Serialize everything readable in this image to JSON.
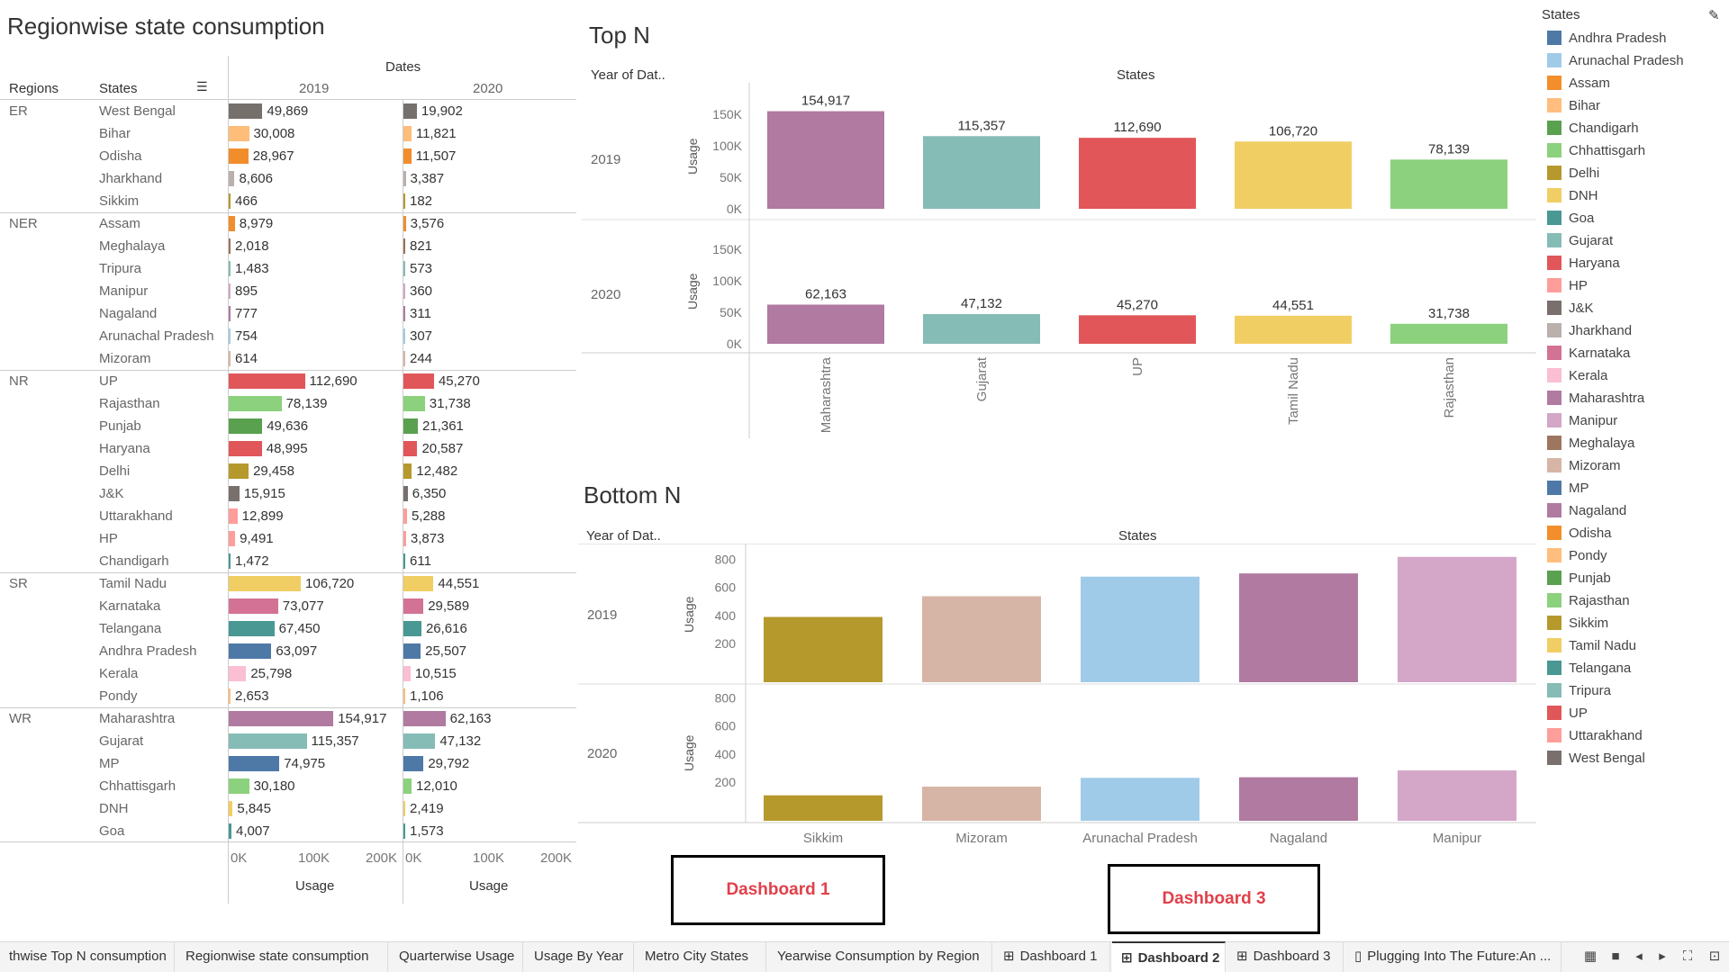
{
  "left_panel": {
    "title": "Regionwise state consumption",
    "col_regions": "Regions",
    "col_states": "States",
    "col_dates": "Dates",
    "year_2019": "2019",
    "year_2020": "2020",
    "axis_ticks": [
      "0K",
      "100K",
      "200K"
    ],
    "axis_label": "Usage",
    "rows": [
      {
        "region": "ER",
        "state": "West Bengal",
        "v2019": "49,869",
        "v2020": "19,902",
        "n2019": 49869,
        "n2020": 19902,
        "color": "#76706c"
      },
      {
        "region": "",
        "state": "Bihar",
        "v2019": "30,008",
        "v2020": "11,821",
        "n2019": 30008,
        "n2020": 11821,
        "color": "#ffbd7a"
      },
      {
        "region": "",
        "state": "Odisha",
        "v2019": "28,967",
        "v2020": "11,507",
        "n2019": 28967,
        "n2020": 11507,
        "color": "#f28d2c"
      },
      {
        "region": "",
        "state": "Jharkhand",
        "v2019": "8,606",
        "v2020": "3,387",
        "n2019": 8606,
        "n2020": 3387,
        "color": "#bab0ac"
      },
      {
        "region": "",
        "state": "Sikkim",
        "v2019": "466",
        "v2020": "182",
        "n2019": 466,
        "n2020": 182,
        "color": "#b5992e"
      },
      {
        "region": "NER",
        "state": "Assam",
        "v2019": "8,979",
        "v2020": "3,576",
        "n2019": 8979,
        "n2020": 3576,
        "color": "#f28d2c"
      },
      {
        "region": "",
        "state": "Meghalaya",
        "v2019": "2,018",
        "v2020": "821",
        "n2019": 2018,
        "n2020": 821,
        "color": "#9c7356"
      },
      {
        "region": "",
        "state": "Tripura",
        "v2019": "1,483",
        "v2020": "573",
        "n2019": 1483,
        "n2020": 573,
        "color": "#86bcb6"
      },
      {
        "region": "",
        "state": "Manipur",
        "v2019": "895",
        "v2020": "360",
        "n2019": 895,
        "n2020": 360,
        "color": "#d4a6c8"
      },
      {
        "region": "",
        "state": "Nagaland",
        "v2019": "777",
        "v2020": "311",
        "n2019": 777,
        "n2020": 311,
        "color": "#b07aa1"
      },
      {
        "region": "",
        "state": "Arunachal Pradesh",
        "v2019": "754",
        "v2020": "307",
        "n2019": 754,
        "n2020": 307,
        "color": "#a0cbe8"
      },
      {
        "region": "",
        "state": "Mizoram",
        "v2019": "614",
        "v2020": "244",
        "n2019": 614,
        "n2020": 244,
        "color": "#d7b5a6"
      },
      {
        "region": "NR",
        "state": "UP",
        "v2019": "112,690",
        "v2020": "45,270",
        "n2019": 112690,
        "n2020": 45270,
        "color": "#e15759"
      },
      {
        "region": "",
        "state": "Rajasthan",
        "v2019": "78,139",
        "v2020": "31,738",
        "n2019": 78139,
        "n2020": 31738,
        "color": "#8cd17d"
      },
      {
        "region": "",
        "state": "Punjab",
        "v2019": "49,636",
        "v2020": "21,361",
        "n2019": 49636,
        "n2020": 21361,
        "color": "#59a14f"
      },
      {
        "region": "",
        "state": "Haryana",
        "v2019": "48,995",
        "v2020": "20,587",
        "n2019": 48995,
        "n2020": 20587,
        "color": "#e15759"
      },
      {
        "region": "",
        "state": "Delhi",
        "v2019": "29,458",
        "v2020": "12,482",
        "n2019": 29458,
        "n2020": 12482,
        "color": "#b6992d"
      },
      {
        "region": "",
        "state": "J&K",
        "v2019": "15,915",
        "v2020": "6,350",
        "n2019": 15915,
        "n2020": 6350,
        "color": "#79706e"
      },
      {
        "region": "",
        "state": "Uttarakhand",
        "v2019": "12,899",
        "v2020": "5,288",
        "n2019": 12899,
        "n2020": 5288,
        "color": "#ff9d9a"
      },
      {
        "region": "",
        "state": "HP",
        "v2019": "9,491",
        "v2020": "3,873",
        "n2019": 9491,
        "n2020": 3873,
        "color": "#ff9d9a"
      },
      {
        "region": "",
        "state": "Chandigarh",
        "v2019": "1,472",
        "v2020": "611",
        "n2019": 1472,
        "n2020": 611,
        "color": "#499894"
      },
      {
        "region": "SR",
        "state": "Tamil Nadu",
        "v2019": "106,720",
        "v2020": "44,551",
        "n2019": 106720,
        "n2020": 44551,
        "color": "#f1ce63"
      },
      {
        "region": "",
        "state": "Karnataka",
        "v2019": "73,077",
        "v2020": "29,589",
        "n2019": 73077,
        "n2020": 29589,
        "color": "#d37295"
      },
      {
        "region": "",
        "state": "Telangana",
        "v2019": "67,450",
        "v2020": "26,616",
        "n2019": 67450,
        "n2020": 26616,
        "color": "#499894"
      },
      {
        "region": "",
        "state": "Andhra Pradesh",
        "v2019": "63,097",
        "v2020": "25,507",
        "n2019": 63097,
        "n2020": 25507,
        "color": "#4e79a7"
      },
      {
        "region": "",
        "state": "Kerala",
        "v2019": "25,798",
        "v2020": "10,515",
        "n2019": 25798,
        "n2020": 10515,
        "color": "#fabfd2"
      },
      {
        "region": "",
        "state": "Pondy",
        "v2019": "2,653",
        "v2020": "1,106",
        "n2019": 2653,
        "n2020": 1106,
        "color": "#ffbe7d"
      },
      {
        "region": "WR",
        "state": "Maharashtra",
        "v2019": "154,917",
        "v2020": "62,163",
        "n2019": 154917,
        "n2020": 62163,
        "color": "#b07aa1"
      },
      {
        "region": "",
        "state": "Gujarat",
        "v2019": "115,357",
        "v2020": "47,132",
        "n2019": 115357,
        "n2020": 47132,
        "color": "#86bcb6"
      },
      {
        "region": "",
        "state": "MP",
        "v2019": "74,975",
        "v2020": "29,792",
        "n2019": 74975,
        "n2020": 29792,
        "color": "#4e79a7"
      },
      {
        "region": "",
        "state": "Chhattisgarh",
        "v2019": "30,180",
        "v2020": "12,010",
        "n2019": 30180,
        "n2020": 12010,
        "color": "#8cd17d"
      },
      {
        "region": "",
        "state": "DNH",
        "v2019": "5,845",
        "v2020": "2,419",
        "n2019": 5845,
        "n2020": 2419,
        "color": "#f1ce63"
      },
      {
        "region": "",
        "state": "Goa",
        "v2019": "4,007",
        "v2020": "1,573",
        "n2019": 4007,
        "n2020": 1573,
        "color": "#499894"
      }
    ]
  },
  "top_n": {
    "title": "Top N",
    "year_header": "Year of Dat..",
    "states_header": "States",
    "usage_label": "Usage",
    "yticks": [
      "150K",
      "100K",
      "50K",
      "0K"
    ]
  },
  "bottom_n": {
    "title": "Bottom N",
    "year_header": "Year of Dat..",
    "states_header": "States",
    "usage_label": "Usage",
    "yticks": [
      "800",
      "600",
      "400",
      "200"
    ]
  },
  "chart_data": [
    {
      "type": "bar",
      "title": "Top N",
      "categories": [
        "Maharashtra",
        "Gujarat",
        "UP",
        "Tamil Nadu",
        "Rajasthan"
      ],
      "colors": [
        "#b07aa1",
        "#86bcb6",
        "#e15759",
        "#f1ce63",
        "#8cd17d"
      ],
      "series": [
        {
          "name": "2019",
          "values": [
            154917,
            115357,
            112690,
            106720,
            78139
          ],
          "labels": [
            "154,917",
            "115,357",
            "112,690",
            "106,720",
            "78,139"
          ]
        },
        {
          "name": "2020",
          "values": [
            62163,
            47132,
            45270,
            44551,
            31738
          ],
          "labels": [
            "62,163",
            "47,132",
            "45,270",
            "44,551",
            "31,738"
          ]
        }
      ],
      "xlabel": "States",
      "ylabel": "Usage",
      "ylim": [
        0,
        160000
      ]
    },
    {
      "type": "bar",
      "title": "Bottom N",
      "categories": [
        "Sikkim",
        "Mizoram",
        "Arunachal Pradesh",
        "Nagaland",
        "Manipur"
      ],
      "colors": [
        "#b6992d",
        "#d7b5a6",
        "#a0cbe8",
        "#b07aa1",
        "#d4a6c8"
      ],
      "series": [
        {
          "name": "2019",
          "values": [
            466,
            614,
            754,
            777,
            895
          ]
        },
        {
          "name": "2020",
          "values": [
            182,
            244,
            307,
            311,
            360
          ]
        }
      ],
      "xlabel": "States",
      "ylabel": "Usage",
      "ylim": [
        0,
        900
      ]
    }
  ],
  "legend": {
    "title": "States",
    "items": [
      {
        "name": "Andhra Pradesh",
        "color": "#4e79a7"
      },
      {
        "name": "Arunachal Pradesh",
        "color": "#a0cbe8"
      },
      {
        "name": "Assam",
        "color": "#f28e2b"
      },
      {
        "name": "Bihar",
        "color": "#ffbe7d"
      },
      {
        "name": "Chandigarh",
        "color": "#59a14f"
      },
      {
        "name": "Chhattisgarh",
        "color": "#8cd17d"
      },
      {
        "name": "Delhi",
        "color": "#b6992d"
      },
      {
        "name": "DNH",
        "color": "#f1ce63"
      },
      {
        "name": "Goa",
        "color": "#499894"
      },
      {
        "name": "Gujarat",
        "color": "#86bcb6"
      },
      {
        "name": "Haryana",
        "color": "#e15759"
      },
      {
        "name": "HP",
        "color": "#ff9d9a"
      },
      {
        "name": "J&K",
        "color": "#79706e"
      },
      {
        "name": "Jharkhand",
        "color": "#bab0ac"
      },
      {
        "name": "Karnataka",
        "color": "#d37295"
      },
      {
        "name": "Kerala",
        "color": "#fabfd2"
      },
      {
        "name": "Maharashtra",
        "color": "#b07aa1"
      },
      {
        "name": "Manipur",
        "color": "#d4a6c8"
      },
      {
        "name": "Meghalaya",
        "color": "#9d7660"
      },
      {
        "name": "Mizoram",
        "color": "#d7b5a6"
      },
      {
        "name": "MP",
        "color": "#4e79a7"
      },
      {
        "name": "Nagaland",
        "color": "#b07aa1"
      },
      {
        "name": "Odisha",
        "color": "#f28e2b"
      },
      {
        "name": "Pondy",
        "color": "#ffbe7d"
      },
      {
        "name": "Punjab",
        "color": "#59a14f"
      },
      {
        "name": "Rajasthan",
        "color": "#8cd17d"
      },
      {
        "name": "Sikkim",
        "color": "#b6992d"
      },
      {
        "name": "Tamil Nadu",
        "color": "#f1ce63"
      },
      {
        "name": "Telangana",
        "color": "#499894"
      },
      {
        "name": "Tripura",
        "color": "#86bcb6"
      },
      {
        "name": "UP",
        "color": "#e15759"
      },
      {
        "name": "Uttarakhand",
        "color": "#ff9d9a"
      },
      {
        "name": "West Bengal",
        "color": "#79706e"
      }
    ]
  },
  "buttons": {
    "dashboard1": "Dashboard 1",
    "dashboard3": "Dashboard 3"
  },
  "tabs": [
    {
      "label": "thwise Top N consumption",
      "icon": ""
    },
    {
      "label": "Regionwise state consumption",
      "icon": ""
    },
    {
      "label": "Quarterwise Usage",
      "icon": ""
    },
    {
      "label": "Usage By Year",
      "icon": ""
    },
    {
      "label": "Metro City States",
      "icon": ""
    },
    {
      "label": "Yearwise Consumption by Region",
      "icon": ""
    },
    {
      "label": "Dashboard 1",
      "icon": "dashboard-grid-icon"
    },
    {
      "label": "Dashboard 2",
      "icon": "dashboard-grid-icon"
    },
    {
      "label": "Dashboard 3",
      "icon": "dashboard-grid-icon"
    },
    {
      "label": "Plugging Into The Future:An ...",
      "icon": "story-icon"
    }
  ],
  "active_tab": "Dashboard 2"
}
